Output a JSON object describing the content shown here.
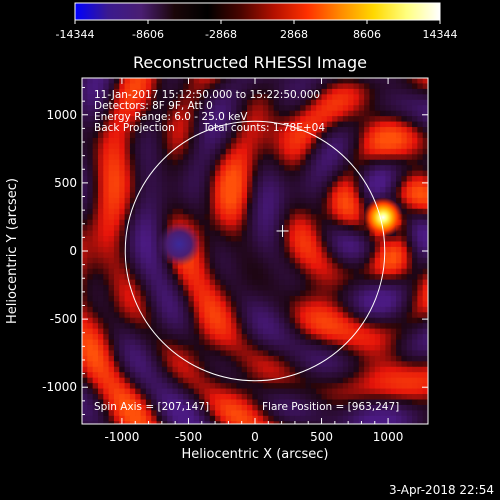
{
  "chart_data": {
    "type": "heatmap",
    "title": "Reconstructed RHESSI Image",
    "xlabel": "Heliocentric X (arcsec)",
    "ylabel": "Heliocentric Y (arcsec)",
    "xlim": [
      -1300,
      1300
    ],
    "ylim": [
      -1270,
      1270
    ],
    "x_ticks": [
      -1000,
      -500,
      0,
      500,
      1000
    ],
    "y_ticks": [
      -1000,
      -500,
      0,
      500,
      1000
    ],
    "colorbar": {
      "range": [
        -14344,
        14344
      ],
      "tick_values": [
        -14344,
        -8606,
        -2868,
        2868,
        8606,
        14344
      ],
      "tick_labels": [
        "-14344",
        "-8606",
        "-2868",
        "2868",
        "8606",
        "14344"
      ],
      "colors": [
        "#0000ff",
        "#3a1a8f",
        "#4a1e72",
        "#1a0608",
        "#000000",
        "#4a0400",
        "#b41000",
        "#ff3000",
        "#ff8a00",
        "#ffd800",
        "#ffff80",
        "#ffffff"
      ]
    },
    "annotations": {
      "time_range": "11-Jan-2017 15:12:50.000 to 15:22:50.000",
      "detectors": "Detectors: 8F 9F, Att 0",
      "energy_range": "Energy Range: 6.0 - 25.0 keV",
      "method": "Back Projection",
      "total_counts": "Total counts: 1.78E+04",
      "spin_axis": "Spin Axis = [207,147]",
      "flare_position": "Flare Position = [963,247]"
    },
    "solar_disk": {
      "center": [
        0,
        0
      ],
      "radius_arcsec": 975
    },
    "crosshair": [
      207,
      147
    ],
    "peak": {
      "x": 963,
      "y": 247,
      "value": 14344
    },
    "secondary_minimum": {
      "x": -570,
      "y": 50
    }
  },
  "footer": {
    "date": "3-Apr-2018 22:54"
  },
  "colors": {
    "background": "#000000",
    "text": "#ffffff",
    "disk_outline": "#ffffff"
  }
}
